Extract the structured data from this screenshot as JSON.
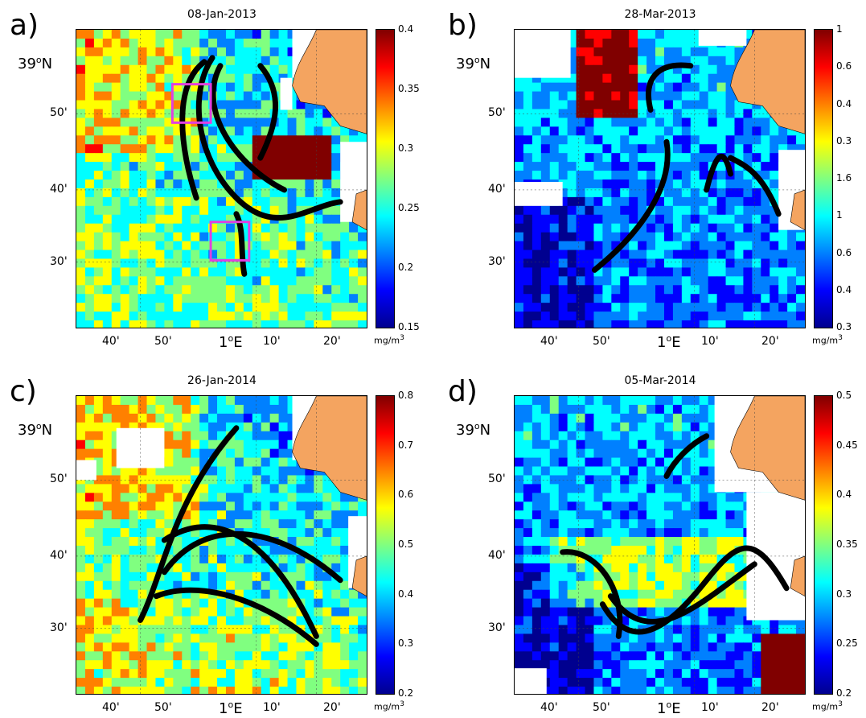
{
  "panels": [
    {
      "letter": "a)",
      "date": "08-Jan-2013",
      "ticks": [
        "0.4",
        "0.35",
        "0.3",
        "0.25",
        "0.2",
        "0.15"
      ],
      "lat_labels": [
        "50'",
        "40'",
        "30'"
      ],
      "lon_labels": [
        "40'",
        "50'",
        "10'",
        "20'"
      ],
      "lat_deg": "39",
      "lon_deg": "1",
      "unit": "mg/m",
      "unit_exp": "3",
      "style": "mixed",
      "has_boxes": true
    },
    {
      "letter": "b)",
      "date": "28-Mar-2013",
      "ticks": [
        "1",
        "0.6",
        "0.4",
        "0.3",
        "1.6",
        "1",
        "0.6",
        "0.4",
        "0.3"
      ],
      "lat_labels": [
        "50'",
        "40'",
        "30'"
      ],
      "lon_labels": [
        "40'",
        "50'",
        "10'",
        "20'"
      ],
      "lat_deg": "39",
      "lon_deg": "1",
      "unit": "mg/m",
      "unit_exp": "3",
      "style": "blue",
      "has_boxes": false
    },
    {
      "letter": "c)",
      "date": "26-Jan-2014",
      "ticks": [
        "0.8",
        "0.7",
        "0.6",
        "0.5",
        "0.4",
        "0.3",
        "0.2"
      ],
      "lat_labels": [
        "50'",
        "40'",
        "30'"
      ],
      "lon_labels": [
        "40'",
        "50'",
        "10'",
        "20'"
      ],
      "lat_deg": "39",
      "lon_deg": "1",
      "unit": "mg/m",
      "unit_exp": "3",
      "style": "mixed",
      "has_boxes": false
    },
    {
      "letter": "d)",
      "date": "05-Mar-2014",
      "ticks": [
        "0.5",
        "0.45",
        "0.4",
        "0.35",
        "0.3",
        "0.25",
        "0.2"
      ],
      "lat_labels": [
        "50'",
        "40'",
        "30'"
      ],
      "lon_labels": [
        "40'",
        "50'",
        "10'",
        "20'"
      ],
      "lat_deg": "39",
      "lon_deg": "1",
      "unit": "mg/m",
      "unit_exp": "3",
      "style": "blue",
      "has_boxes": false
    }
  ],
  "deg_suffix": {
    "lat": "N",
    "lon": "E",
    "symbol": "o"
  },
  "colors": {
    "land": "#f4a460",
    "trajectory": "#000000",
    "box": "#e040e0",
    "scale": [
      "#00008f",
      "#0000ff",
      "#0080ff",
      "#00ffff",
      "#80ff80",
      "#ffff00",
      "#ff8000",
      "#ff0000",
      "#800000"
    ]
  }
}
